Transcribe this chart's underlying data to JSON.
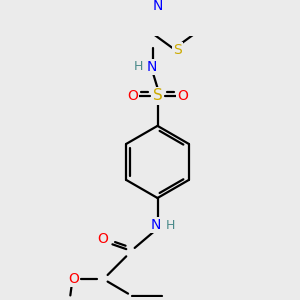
{
  "bg_color": "#ebebeb",
  "atom_colors": {
    "C": "#000000",
    "H": "#4a8a8a",
    "N": "#0000ff",
    "O": "#ff0000",
    "S_thiazole": "#ccaa00",
    "S_sulfonyl": "#ccaa00"
  },
  "bond_color": "#000000",
  "bond_width": 1.6,
  "dbo": 0.055,
  "fs": 10,
  "fsh": 9
}
